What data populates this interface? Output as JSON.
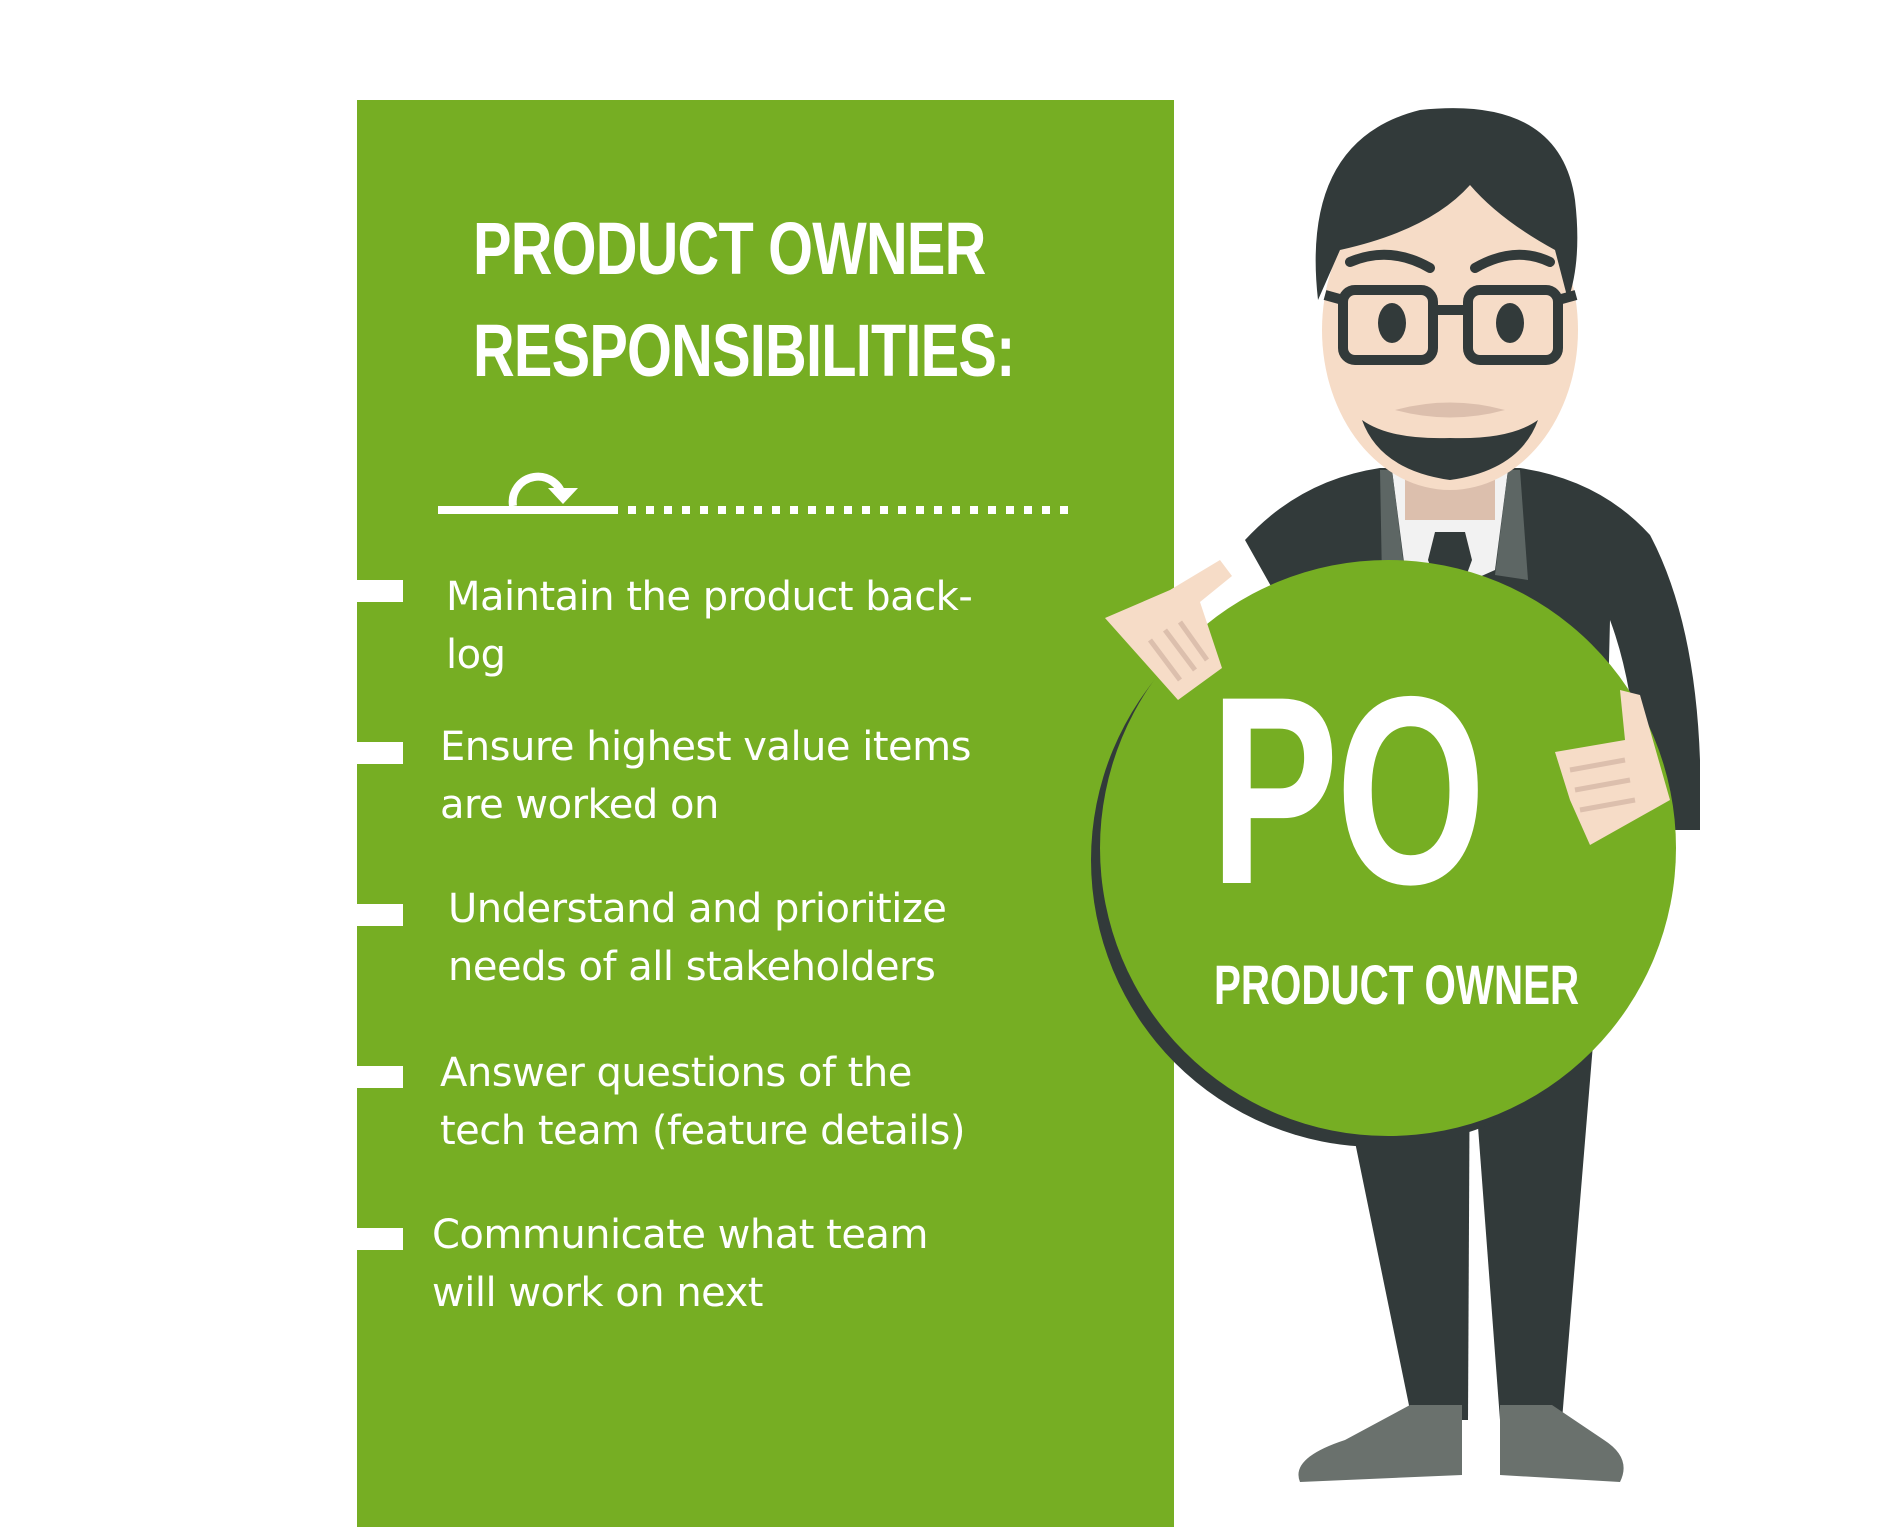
{
  "title": {
    "line1": "PRODUCT OWNER",
    "line2": "RESPONSIBILITIES:"
  },
  "divider_icon": "cycle-arrow-icon",
  "responsibilities": [
    {
      "line1": "Maintain the product back-",
      "line2": "log"
    },
    {
      "line1": "Ensure highest value items",
      "line2": "are worked on"
    },
    {
      "line1": "Understand and prioritize",
      "line2": "needs of all stakeholders"
    },
    {
      "line1": "Answer questions of the",
      "line2": "tech team (feature details)"
    },
    {
      "line1": "Communicate what team",
      "line2": "will work on next"
    }
  ],
  "badge": {
    "initials": "PO",
    "label": "PRODUCT OWNER"
  },
  "colors": {
    "accent_green": "#76ae23",
    "suit": "#323a3a",
    "skin": "#f6dcc7",
    "text": "#ffffff"
  }
}
